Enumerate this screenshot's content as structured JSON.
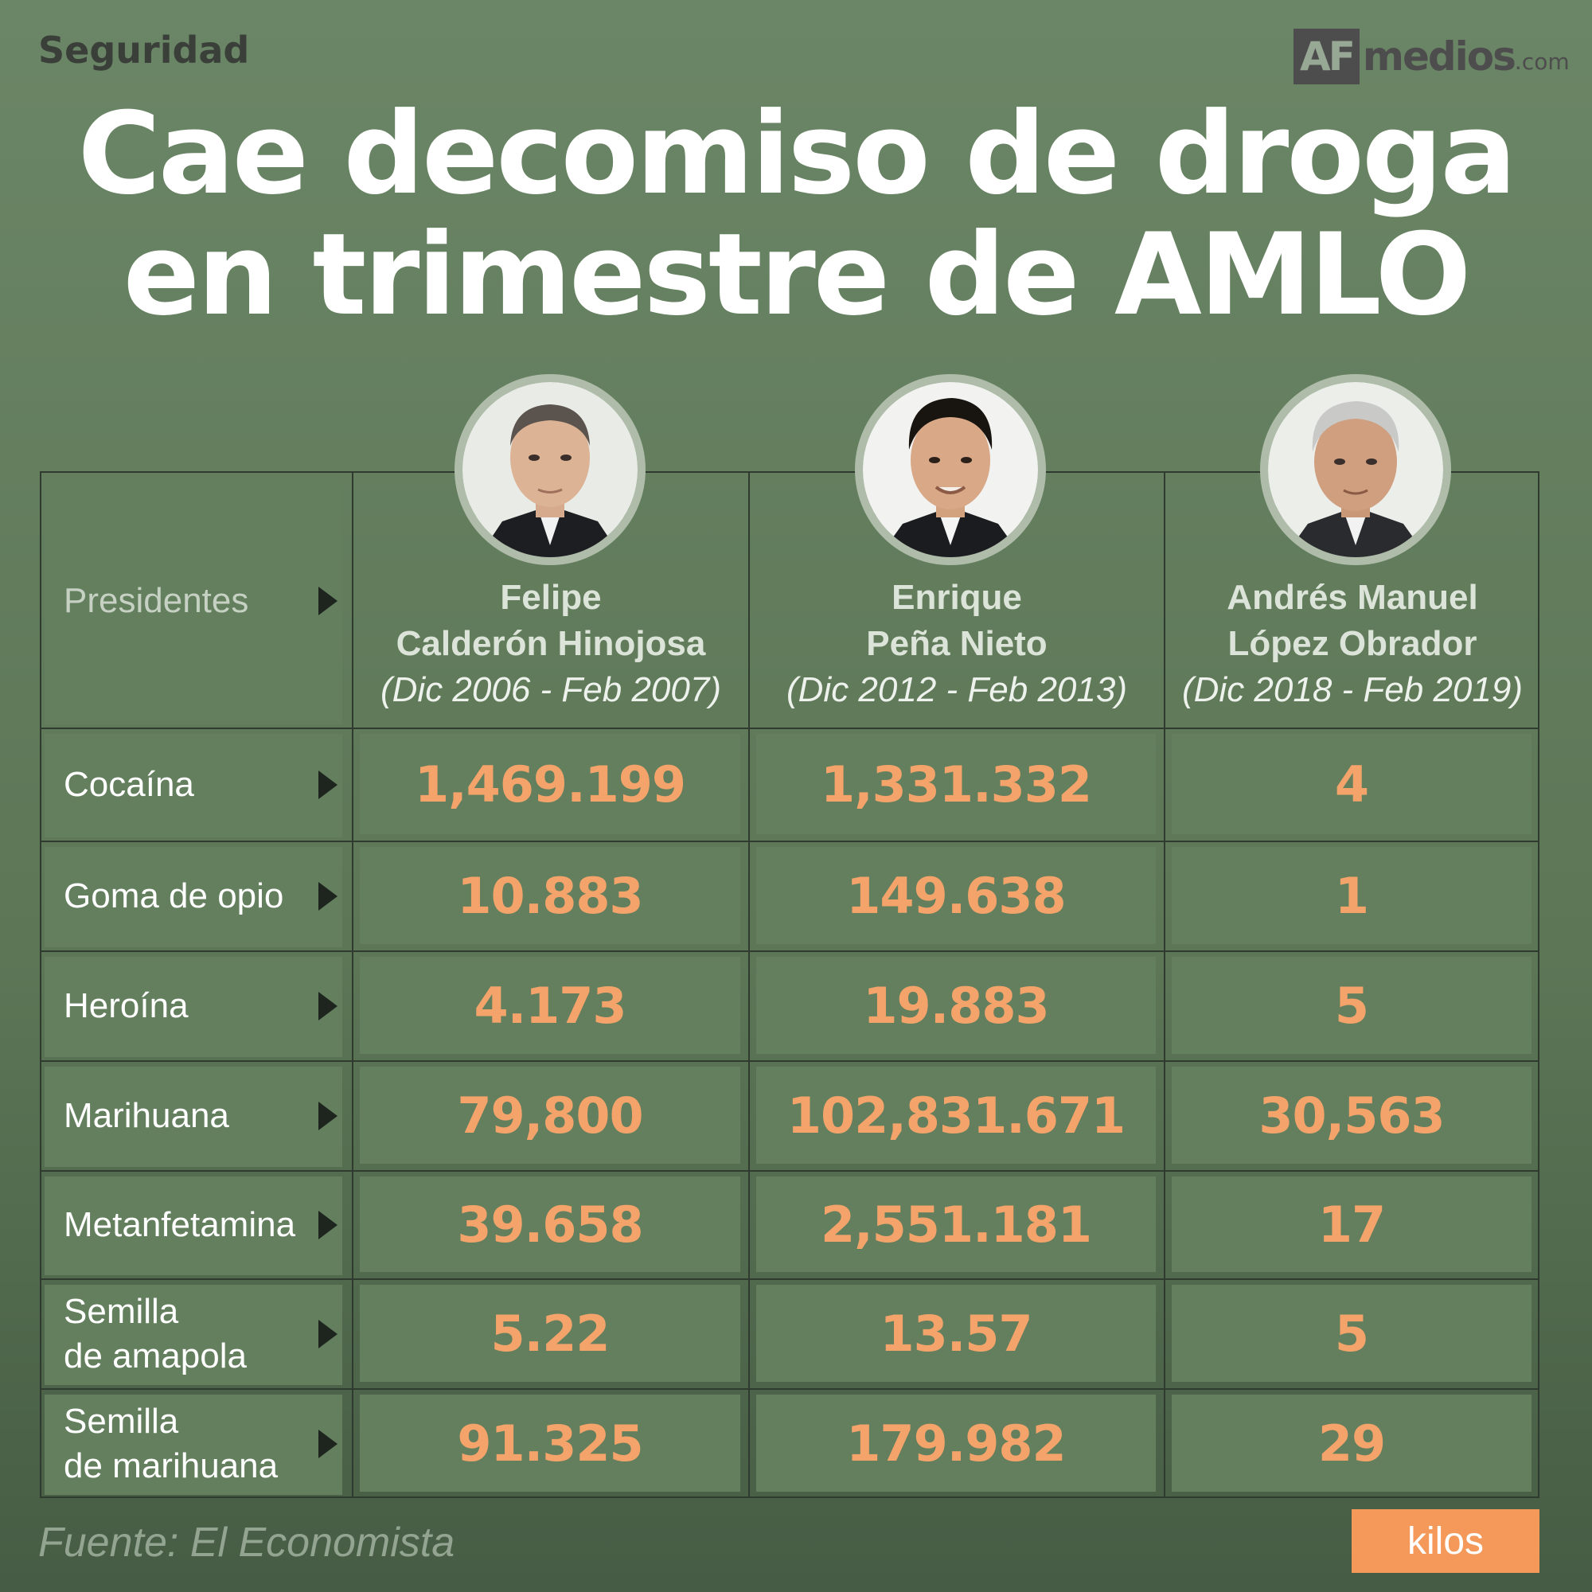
{
  "header": {
    "section": "Seguridad",
    "logo_af": "AF",
    "logo_medios": "medios",
    "logo_com": ".com",
    "title_line1": "Cae decomiso de droga",
    "title_line2": "en trimestre de AMLO"
  },
  "table": {
    "row_header_label": "Presidentes",
    "presidents": [
      {
        "line1": "Felipe",
        "line2": "Calderón Hinojosa",
        "period": "(Dic 2006 - Feb 2007)"
      },
      {
        "line1": "Enrique",
        "line2": "Peña Nieto",
        "period": "(Dic 2012 - Feb 2013)"
      },
      {
        "line1": "Andrés Manuel",
        "line2": "López Obrador",
        "period": "(Dic 2018 - Feb 2019)"
      }
    ],
    "rows": [
      {
        "label_line1": "Cocaína",
        "label_line2": "",
        "values": [
          "1,469.199",
          "1,331.332",
          "4"
        ]
      },
      {
        "label_line1": "Goma de opio",
        "label_line2": "",
        "values": [
          "10.883",
          "149.638",
          "1"
        ]
      },
      {
        "label_line1": "Heroína",
        "label_line2": "",
        "values": [
          "4.173",
          "19.883",
          "5"
        ]
      },
      {
        "label_line1": "Marihuana",
        "label_line2": "",
        "values": [
          "79,800",
          "102,831.671",
          "30,563"
        ]
      },
      {
        "label_line1": "Metanfetamina",
        "label_line2": "",
        "values": [
          "39.658",
          "2,551.181",
          "17"
        ]
      },
      {
        "label_line1": "Semilla",
        "label_line2": "de amapola",
        "values": [
          "5.22",
          "13.57",
          "5"
        ]
      },
      {
        "label_line1": "Semilla",
        "label_line2": "de marihuana",
        "values": [
          "91.325",
          "179.982",
          "29"
        ]
      }
    ]
  },
  "footer": {
    "source": "Fuente: El Economista",
    "unit": "kilos"
  },
  "colors": {
    "background": "#6b8666",
    "cell": "#637f5e",
    "value_text": "#f4a46b",
    "unit_badge": "#f4995a"
  }
}
